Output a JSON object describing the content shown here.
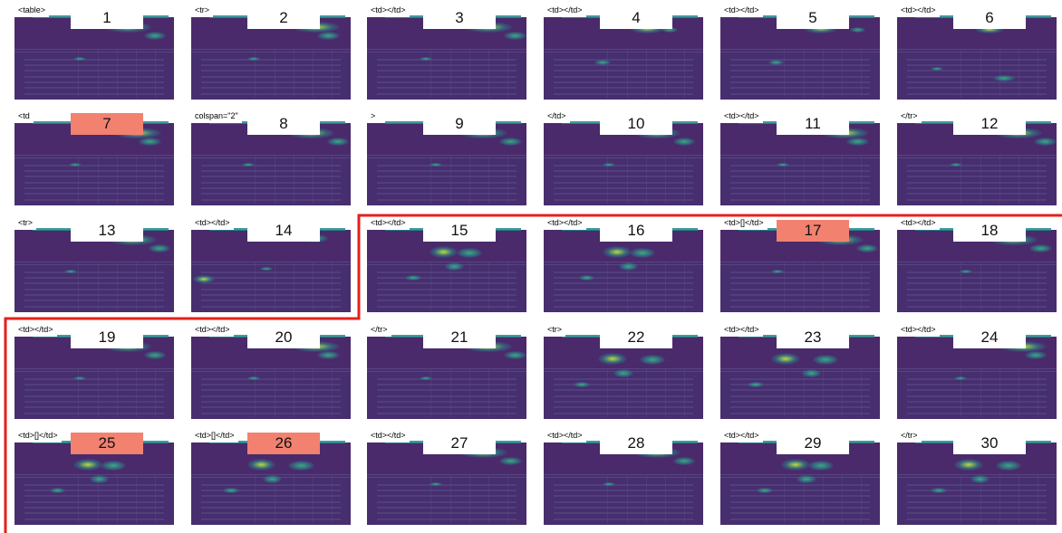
{
  "figure": {
    "colors": {
      "background": "#ffffff",
      "heatmap_base": "#472e6e",
      "highlight_label": "#f28170",
      "boundary": "#e3201b"
    },
    "boundary_after_tile": 14,
    "tiles": [
      {
        "number": "1",
        "token": "<table>",
        "highlighted": false,
        "hot": "top"
      },
      {
        "number": "2",
        "token": "<tr>",
        "highlighted": false,
        "hot": "top"
      },
      {
        "number": "3",
        "token": "<td></td>",
        "highlighted": false,
        "hot": "top"
      },
      {
        "number": "4",
        "token": "<td></td>",
        "highlighted": false,
        "hot": "mid"
      },
      {
        "number": "5",
        "token": "<td></td>",
        "highlighted": false,
        "hot": "mid"
      },
      {
        "number": "6",
        "token": "<td></td>",
        "highlighted": false,
        "hot": "low"
      },
      {
        "number": "7",
        "token": "<td",
        "highlighted": true,
        "hot": "top"
      },
      {
        "number": "8",
        "token": "colspan=\"2\"",
        "highlighted": false,
        "hot": "top"
      },
      {
        "number": "9",
        "token": ">",
        "highlighted": false,
        "hot": "top"
      },
      {
        "number": "10",
        "token": "</td>",
        "highlighted": false,
        "hot": "top"
      },
      {
        "number": "11",
        "token": "<td></td>",
        "highlighted": false,
        "hot": "top"
      },
      {
        "number": "12",
        "token": "</tr>",
        "highlighted": false,
        "hot": "top"
      },
      {
        "number": "13",
        "token": "<tr>",
        "highlighted": false,
        "hot": "top"
      },
      {
        "number": "14",
        "token": "<td></td>",
        "highlighted": false,
        "hot": "left"
      },
      {
        "number": "15",
        "token": "<td></td>",
        "highlighted": false,
        "hot": "header"
      },
      {
        "number": "16",
        "token": "<td></td>",
        "highlighted": false,
        "hot": "header"
      },
      {
        "number": "17",
        "token": "<td>[]</td>",
        "highlighted": true,
        "hot": "top"
      },
      {
        "number": "18",
        "token": "<td></td>",
        "highlighted": false,
        "hot": "top"
      },
      {
        "number": "19",
        "token": "<td></td>",
        "highlighted": false,
        "hot": "top"
      },
      {
        "number": "20",
        "token": "<td></td>",
        "highlighted": false,
        "hot": "top"
      },
      {
        "number": "21",
        "token": "</tr>",
        "highlighted": false,
        "hot": "top"
      },
      {
        "number": "22",
        "token": "<tr>",
        "highlighted": false,
        "hot": "header"
      },
      {
        "number": "23",
        "token": "<td></td>",
        "highlighted": false,
        "hot": "header"
      },
      {
        "number": "24",
        "token": "<td></td>",
        "highlighted": false,
        "hot": "top"
      },
      {
        "number": "25",
        "token": "<td>[]</td>",
        "highlighted": true,
        "hot": "header"
      },
      {
        "number": "26",
        "token": "<td>[]</td>",
        "highlighted": true,
        "hot": "header"
      },
      {
        "number": "27",
        "token": "<td></td>",
        "highlighted": false,
        "hot": "top"
      },
      {
        "number": "28",
        "token": "<td></td>",
        "highlighted": false,
        "hot": "top"
      },
      {
        "number": "29",
        "token": "<td></td>",
        "highlighted": false,
        "hot": "header"
      },
      {
        "number": "30",
        "token": "</tr>",
        "highlighted": false,
        "hot": "header"
      }
    ]
  }
}
